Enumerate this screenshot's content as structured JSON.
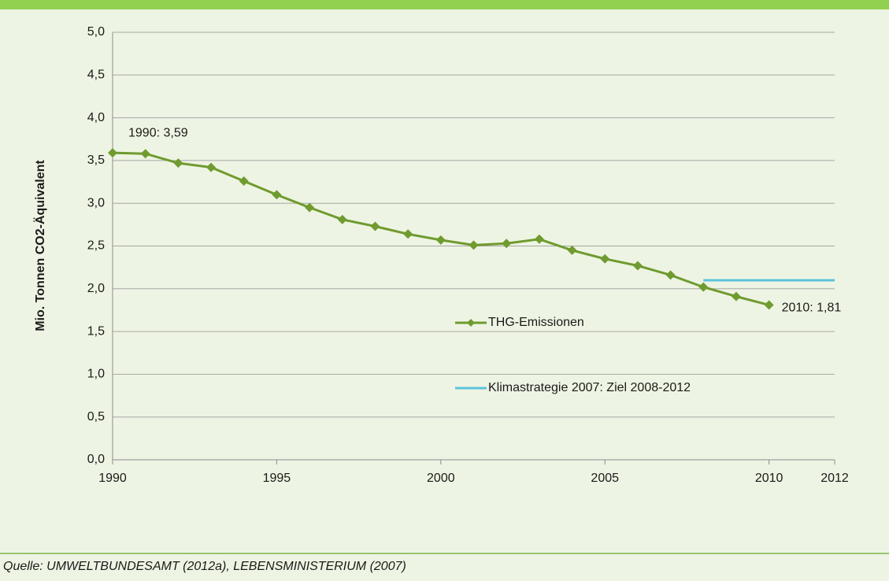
{
  "chart_data": {
    "type": "line",
    "y_label": "Mio. Tonnen CO2-Äquivalent",
    "source": "Quelle: UMWELTBUNDESAMT (2012a), LEBENSMINISTERIUM (2007)",
    "xlim": [
      1990,
      2012
    ],
    "xticks": [
      1990,
      1995,
      2000,
      2005,
      2010,
      2012
    ],
    "ylim": [
      0,
      5
    ],
    "yticks": [
      {
        "value": 0,
        "label": "0,0"
      },
      {
        "value": 0.5,
        "label": "0,5"
      },
      {
        "value": 1,
        "label": "1,0"
      },
      {
        "value": 1.5,
        "label": "1,5"
      },
      {
        "value": 2,
        "label": "2,0"
      },
      {
        "value": 2.5,
        "label": "2,5"
      },
      {
        "value": 3,
        "label": "3,0"
      },
      {
        "value": 3.5,
        "label": "3,5"
      },
      {
        "value": 4,
        "label": "4,0"
      },
      {
        "value": 4.5,
        "label": "4,5"
      },
      {
        "value": 5,
        "label": "5,0"
      }
    ],
    "grid": true,
    "legend": "center",
    "series": [
      {
        "name": "THG-Emissionen",
        "color": "#6f9b2f",
        "marker": "diamond",
        "x": [
          1990,
          1991,
          1992,
          1993,
          1994,
          1995,
          1996,
          1997,
          1998,
          1999,
          2000,
          2001,
          2002,
          2003,
          2004,
          2005,
          2006,
          2007,
          2008,
          2009,
          2010
        ],
        "values": [
          3.59,
          3.58,
          3.47,
          3.42,
          3.26,
          3.1,
          2.95,
          2.81,
          2.73,
          2.64,
          2.57,
          2.51,
          2.53,
          2.58,
          2.45,
          2.35,
          2.27,
          2.16,
          2.02,
          1.91,
          1.81
        ]
      },
      {
        "name": "Klimastrategie 2007: Ziel 2008-2012",
        "color": "#5bc4dc",
        "x": [
          2008,
          2012
        ],
        "values": [
          2.1,
          2.1
        ]
      }
    ],
    "annotations": [
      {
        "text": "1990: 3,59",
        "series": 0,
        "point": 0
      },
      {
        "text": "2010: 1,81",
        "series": 0,
        "point": 20
      }
    ]
  }
}
